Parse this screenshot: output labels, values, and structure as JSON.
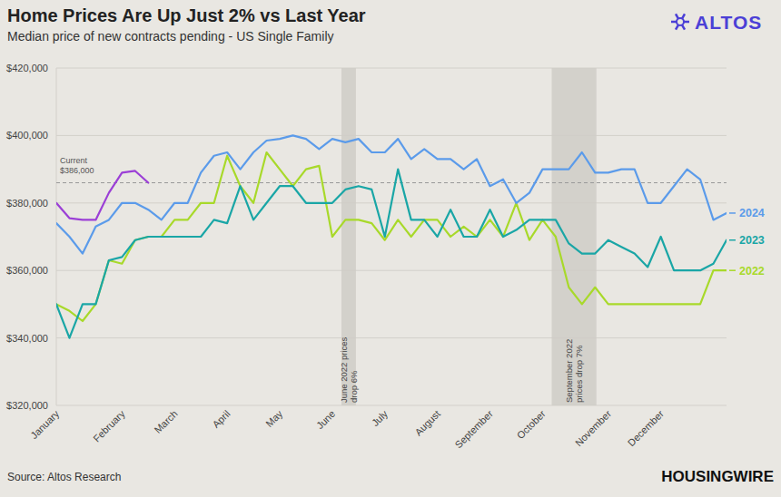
{
  "chart_data": {
    "type": "line",
    "title": "Home Prices Are Up Just 2% vs Last Year",
    "subtitle": "Median price of new contracts pending - US Single Family",
    "source": "Source: Altos Research",
    "brand": "ALTOS",
    "publisher": "HOUSINGWIRE",
    "categories": [
      "January",
      null,
      null,
      null,
      null,
      "February",
      null,
      null,
      null,
      "March",
      null,
      null,
      null,
      "April",
      null,
      null,
      null,
      "May",
      null,
      null,
      null,
      "June",
      null,
      null,
      null,
      "July",
      null,
      null,
      null,
      "August",
      null,
      null,
      null,
      "September",
      null,
      null,
      null,
      "October",
      null,
      null,
      null,
      null,
      "November",
      null,
      null,
      null,
      "December",
      null,
      null,
      null,
      null,
      null
    ],
    "ylim": [
      320000,
      420000
    ],
    "yticks": [
      {
        "value": 320000,
        "label": "$320,000"
      },
      {
        "value": 340000,
        "label": "$340,000"
      },
      {
        "value": 360000,
        "label": "$360,000"
      },
      {
        "value": 380000,
        "label": "$380,000"
      },
      {
        "value": 400000,
        "label": "$400,000"
      },
      {
        "value": 420000,
        "label": "$420,000"
      }
    ],
    "grid": true,
    "annotations": [
      {
        "type": "hline",
        "y": 386000,
        "text": [
          "Current",
          "$386,000"
        ]
      },
      {
        "type": "band",
        "x0": 21.7,
        "x1": 22.8,
        "text": [
          "June 2022 prices",
          "drop 6%"
        ]
      },
      {
        "type": "band",
        "x0": 37.7,
        "x1": 41.1,
        "text": [
          "September 2022",
          "prices drop 7%"
        ]
      }
    ],
    "series": [
      {
        "color": "#9b3fd6",
        "values": [
          380000,
          375500,
          375000,
          375000,
          383000,
          389000,
          389500,
          386000,
          null,
          null,
          null,
          null,
          null,
          null,
          null,
          null,
          null,
          null,
          null,
          null,
          null,
          null,
          null,
          null,
          null,
          null,
          null,
          null,
          null,
          null,
          null,
          null,
          null,
          null,
          null,
          null,
          null,
          null,
          null,
          null,
          null,
          null,
          null,
          null,
          null,
          null,
          null,
          null,
          null,
          null,
          null,
          null
        ]
      },
      {
        "name": "2024",
        "color": "#5b9bea",
        "values": [
          374000,
          370000,
          365000,
          373000,
          375000,
          380000,
          380000,
          378000,
          375000,
          380000,
          380000,
          389000,
          394000,
          395000,
          390000,
          395000,
          398500,
          399000,
          400000,
          399000,
          396000,
          399000,
          398000,
          399000,
          395000,
          395000,
          399000,
          393000,
          396000,
          393000,
          393000,
          390000,
          393000,
          385000,
          387000,
          380000,
          383000,
          390000,
          390000,
          390000,
          395000,
          389000,
          389000,
          390000,
          390000,
          380000,
          380000,
          385000,
          390000,
          387000,
          375000,
          377000
        ]
      },
      {
        "name": "2023",
        "color": "#1aa6a6",
        "values": [
          350000,
          340000,
          350000,
          350000,
          363000,
          364000,
          369000,
          370000,
          370000,
          370000,
          370000,
          370000,
          375000,
          374000,
          385000,
          375000,
          380000,
          385000,
          385000,
          380000,
          380000,
          380000,
          384000,
          385000,
          384000,
          370000,
          390000,
          375000,
          375000,
          370000,
          378000,
          370000,
          370000,
          378000,
          370000,
          372000,
          375000,
          375000,
          375000,
          368000,
          365000,
          365000,
          369000,
          367000,
          365000,
          361000,
          370000,
          360000,
          360000,
          360000,
          362000,
          369000
        ]
      },
      {
        "name": "2022",
        "color": "#a8d92a",
        "values": [
          350000,
          348000,
          345000,
          350000,
          363000,
          362000,
          369000,
          370000,
          370000,
          375000,
          375000,
          380000,
          380000,
          394000,
          385000,
          380000,
          395000,
          390000,
          385000,
          390000,
          391000,
          370000,
          375000,
          375000,
          374000,
          369000,
          375000,
          370000,
          375000,
          375000,
          370000,
          373000,
          370000,
          375000,
          370000,
          380000,
          369000,
          375000,
          370000,
          355000,
          350000,
          355000,
          350000,
          350000,
          350000,
          350000,
          350000,
          350000,
          350000,
          350000,
          360000,
          360000
        ]
      }
    ]
  }
}
